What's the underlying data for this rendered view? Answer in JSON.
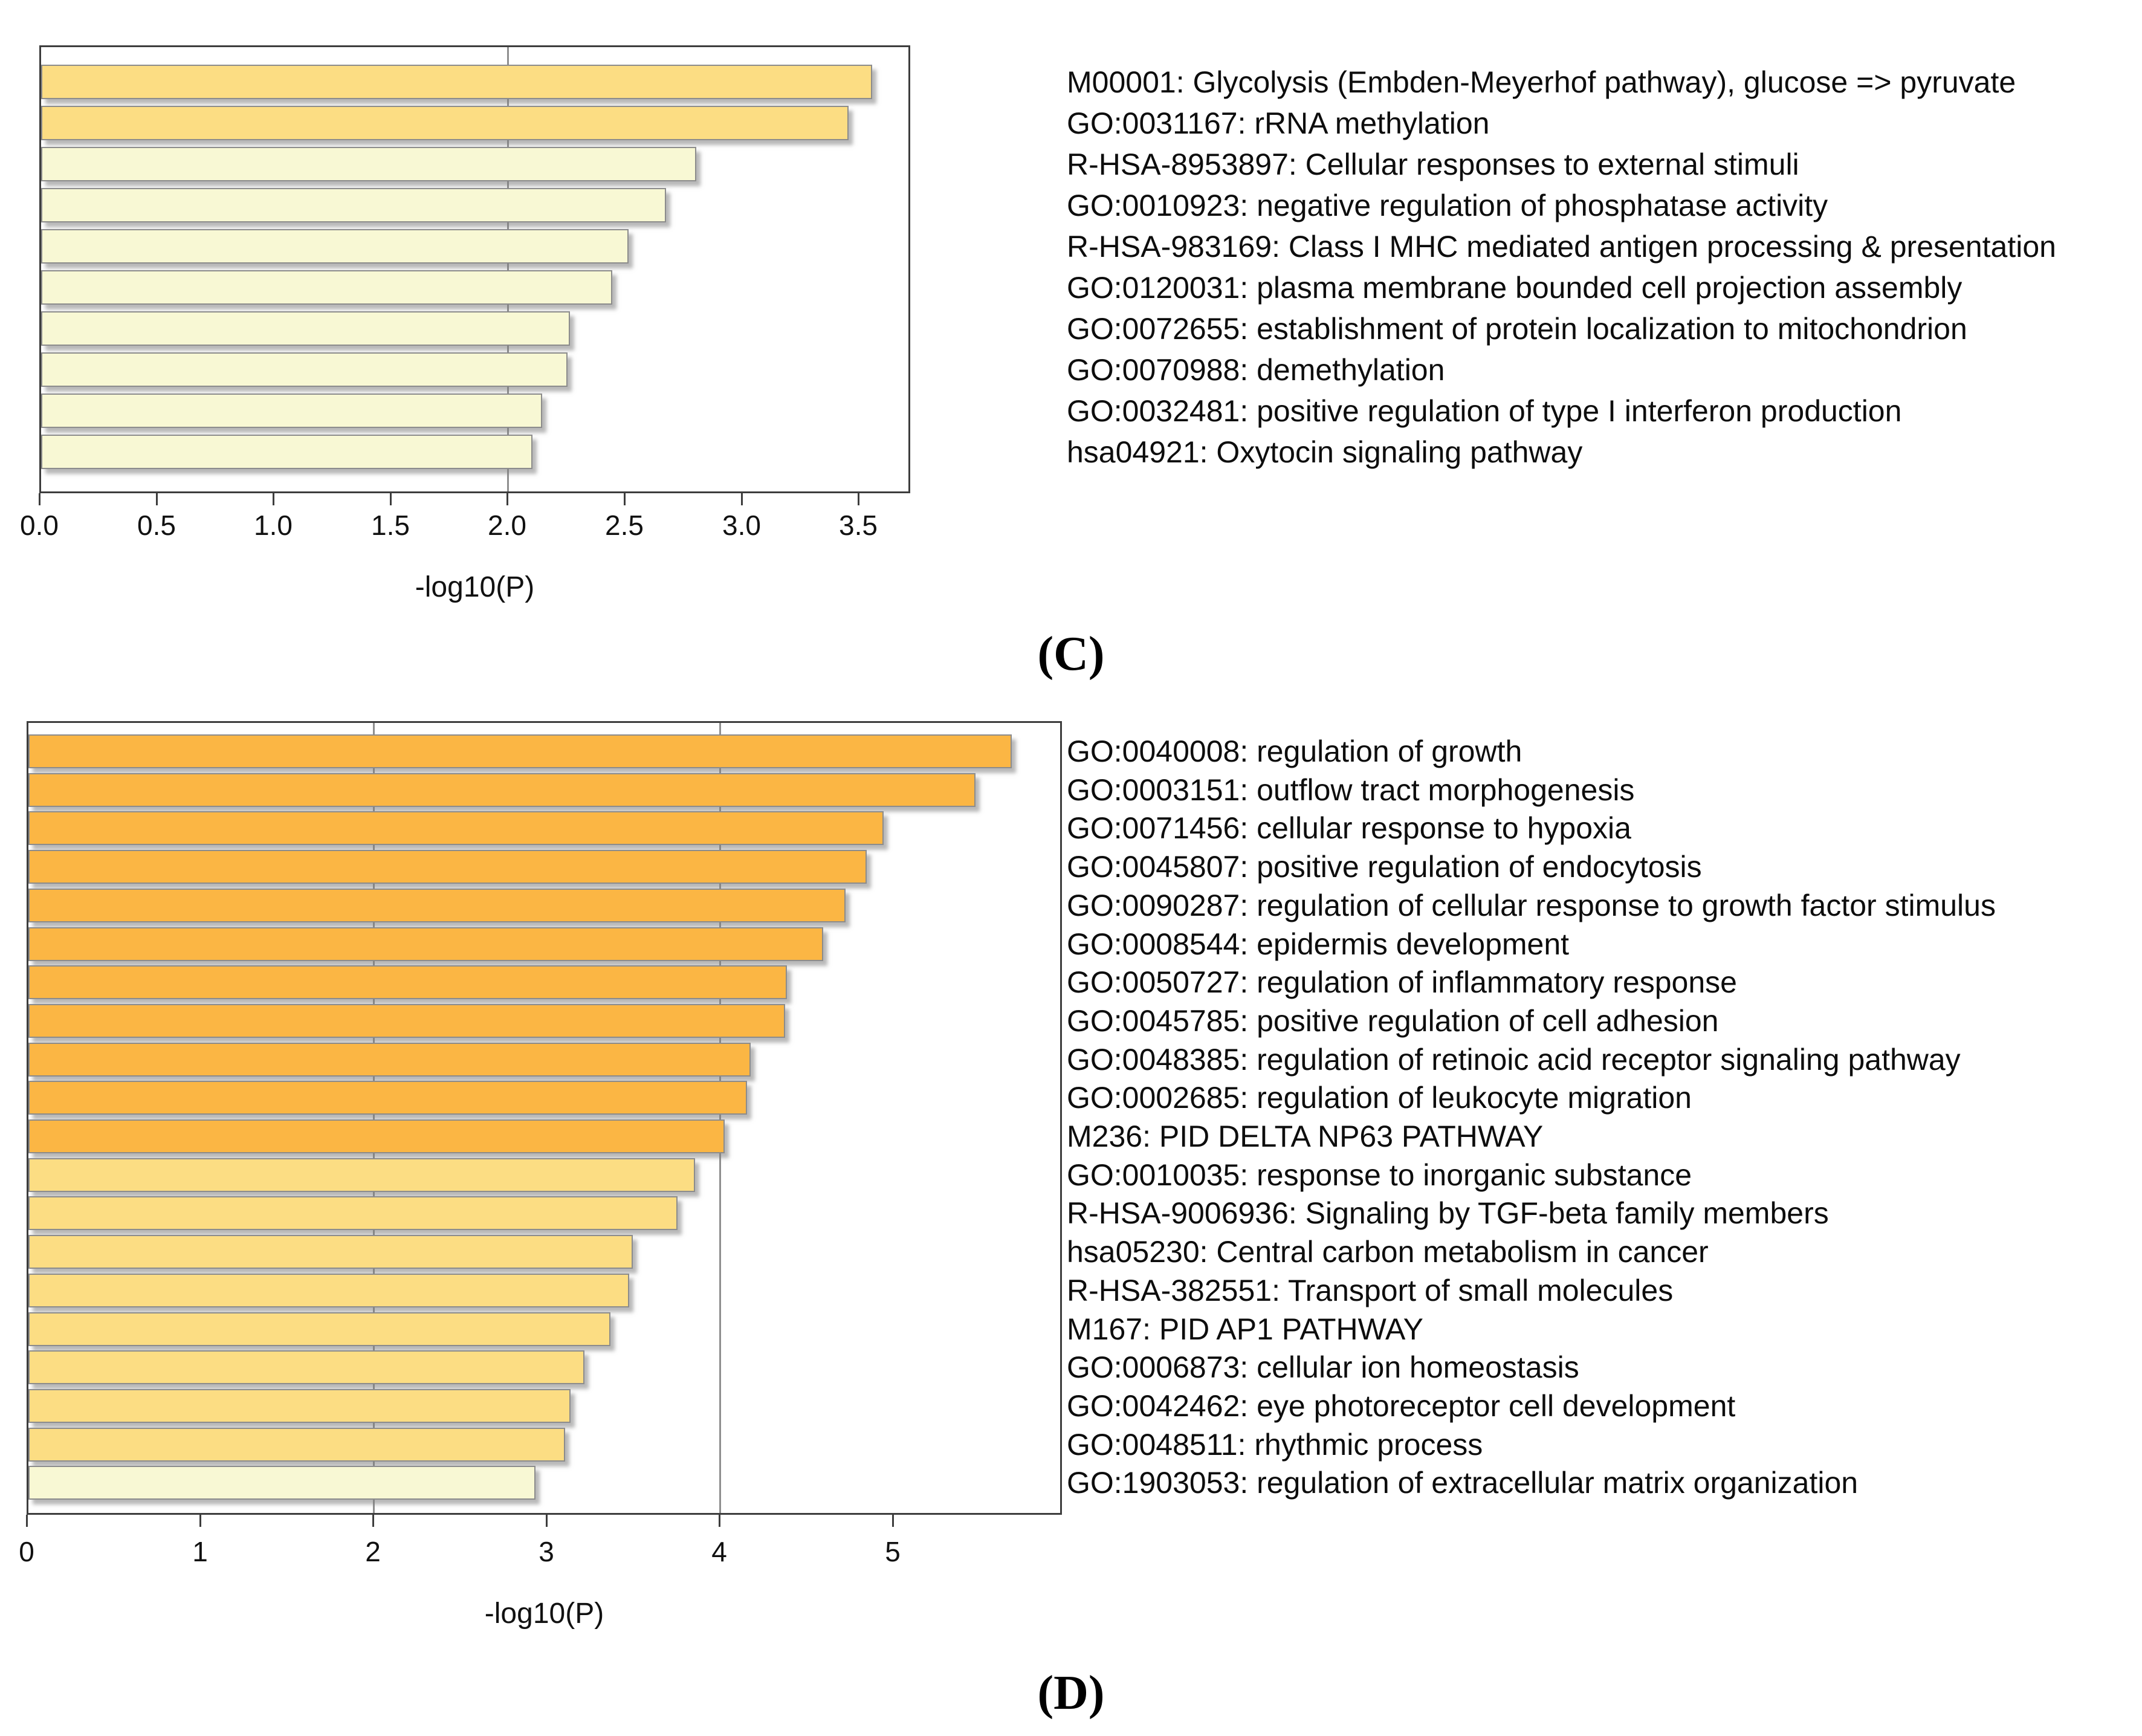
{
  "captions": {
    "c": "(C)",
    "d": "(D)"
  },
  "colors": {
    "orange": "#fbb644",
    "gold": "#fcdd83",
    "pale": "#f8f8d4"
  },
  "chart_data": [
    {
      "type": "bar",
      "panel": "C",
      "orientation": "horizontal",
      "xlabel": "-log10(P)",
      "xlim": [
        0,
        3.72
      ],
      "grid": "vertical",
      "gridlines_at": [
        2.0
      ],
      "legend_position": "none",
      "xticks": [
        {
          "value": 0.0,
          "label": "0.0"
        },
        {
          "value": 0.5,
          "label": "0.5"
        },
        {
          "value": 1.0,
          "label": "1.0"
        },
        {
          "value": 1.5,
          "label": "1.5"
        },
        {
          "value": 2.0,
          "label": "2.0"
        },
        {
          "value": 2.5,
          "label": "2.5"
        },
        {
          "value": 3.0,
          "label": "3.0"
        },
        {
          "value": 3.5,
          "label": "3.5"
        }
      ],
      "bars": [
        {
          "label": "M00001: Glycolysis (Embden-Meyerhof pathway), glucose => pyruvate",
          "value": 3.55,
          "color": "gold"
        },
        {
          "label": "GO:0031167: rRNA methylation",
          "value": 3.45,
          "color": "gold"
        },
        {
          "label": "R-HSA-8953897: Cellular responses to external stimuli",
          "value": 2.8,
          "color": "pale"
        },
        {
          "label": "GO:0010923: negative regulation of phosphatase activity",
          "value": 2.67,
          "color": "pale"
        },
        {
          "label": "R-HSA-983169: Class I MHC mediated antigen processing & presentation",
          "value": 2.51,
          "color": "pale"
        },
        {
          "label": "GO:0120031: plasma membrane bounded cell projection assembly",
          "value": 2.44,
          "color": "pale"
        },
        {
          "label": "GO:0072655: establishment of protein localization to mitochondrion",
          "value": 2.26,
          "color": "pale"
        },
        {
          "label": "GO:0070988: demethylation",
          "value": 2.25,
          "color": "pale"
        },
        {
          "label": "GO:0032481: positive regulation of type I interferon production",
          "value": 2.14,
          "color": "pale"
        },
        {
          "label": "hsa04921: Oxytocin signaling pathway",
          "value": 2.1,
          "color": "pale"
        }
      ]
    },
    {
      "type": "bar",
      "panel": "D",
      "orientation": "horizontal",
      "xlabel": "-log10(P)",
      "xlim": [
        0,
        5.98
      ],
      "grid": "vertical",
      "gridlines_at": [
        2.0,
        4.0
      ],
      "legend_position": "none",
      "xticks": [
        {
          "value": 0,
          "label": "0"
        },
        {
          "value": 1,
          "label": "1"
        },
        {
          "value": 2,
          "label": "2"
        },
        {
          "value": 3,
          "label": "3"
        },
        {
          "value": 4,
          "label": "4"
        },
        {
          "value": 5,
          "label": "5"
        }
      ],
      "bars": [
        {
          "label": "GO:0040008: regulation of growth",
          "value": 5.68,
          "color": "orange"
        },
        {
          "label": "GO:0003151: outflow tract morphogenesis",
          "value": 5.47,
          "color": "orange"
        },
        {
          "label": "GO:0071456: cellular response to hypoxia",
          "value": 4.94,
          "color": "orange"
        },
        {
          "label": "GO:0045807: positive regulation of endocytosis",
          "value": 4.84,
          "color": "orange"
        },
        {
          "label": "GO:0090287: regulation of cellular response to growth factor stimulus",
          "value": 4.72,
          "color": "orange"
        },
        {
          "label": "GO:0008544: epidermis development",
          "value": 4.59,
          "color": "orange"
        },
        {
          "label": "GO:0050727: regulation of inflammatory response",
          "value": 4.38,
          "color": "orange"
        },
        {
          "label": "GO:0045785: positive regulation of cell adhesion",
          "value": 4.37,
          "color": "orange"
        },
        {
          "label": "GO:0048385: regulation of retinoic acid receptor signaling pathway",
          "value": 4.17,
          "color": "orange"
        },
        {
          "label": "GO:0002685: regulation of leukocyte migration",
          "value": 4.15,
          "color": "orange"
        },
        {
          "label": "M236: PID DELTA NP63 PATHWAY",
          "value": 4.02,
          "color": "orange"
        },
        {
          "label": "GO:0010035: response to inorganic substance",
          "value": 3.85,
          "color": "gold"
        },
        {
          "label": "R-HSA-9006936: Signaling by TGF-beta family members",
          "value": 3.75,
          "color": "gold"
        },
        {
          "label": "hsa05230: Central carbon metabolism in cancer",
          "value": 3.49,
          "color": "gold"
        },
        {
          "label": "R-HSA-382551: Transport of small molecules",
          "value": 3.47,
          "color": "gold"
        },
        {
          "label": "M167: PID AP1 PATHWAY",
          "value": 3.36,
          "color": "gold"
        },
        {
          "label": "GO:0006873: cellular ion homeostasis",
          "value": 3.21,
          "color": "gold"
        },
        {
          "label": "GO:0042462: eye photoreceptor cell development",
          "value": 3.13,
          "color": "gold"
        },
        {
          "label": "GO:0048511: rhythmic process",
          "value": 3.1,
          "color": "gold"
        },
        {
          "label": "GO:1903053: regulation of extracellular matrix organization",
          "value": 2.93,
          "color": "pale"
        }
      ]
    }
  ]
}
